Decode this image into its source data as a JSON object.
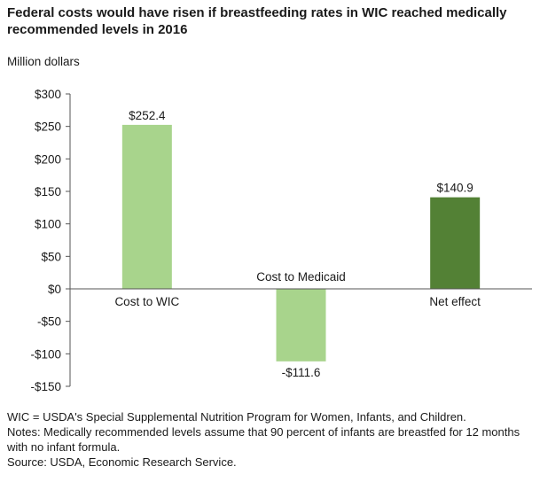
{
  "title": "Federal costs would have risen if breastfeeding rates in WIC reached medically recommended levels in 2016",
  "unit_label": "Million dollars",
  "chart_data": {
    "type": "bar",
    "categories": [
      "Cost to WIC",
      "Cost to Medicaid",
      "Net effect"
    ],
    "values": [
      252.4,
      -111.6,
      140.9
    ],
    "value_labels": [
      "$252.4",
      "-$111.6",
      "$140.9"
    ],
    "bar_colors": [
      "#a8d48c",
      "#a8d48c",
      "#538135"
    ],
    "ylim": [
      -150,
      300
    ],
    "yticks": [
      300,
      250,
      200,
      150,
      100,
      50,
      0,
      -50,
      -100,
      -150
    ],
    "ytick_labels": [
      "$300",
      "$250",
      "$200",
      "$150",
      "$100",
      "$50",
      "$0",
      "-$50",
      "-$100",
      "-$150"
    ],
    "grid": false
  },
  "notes": [
    "WIC = USDA's Special Supplemental Nutrition Program for Women, Infants, and Children.",
    "Notes: Medically recommended levels assume that 90 percent of infants are breastfed for 12 months with no infant formula.",
    "Source:  USDA, Economic Research Service."
  ]
}
